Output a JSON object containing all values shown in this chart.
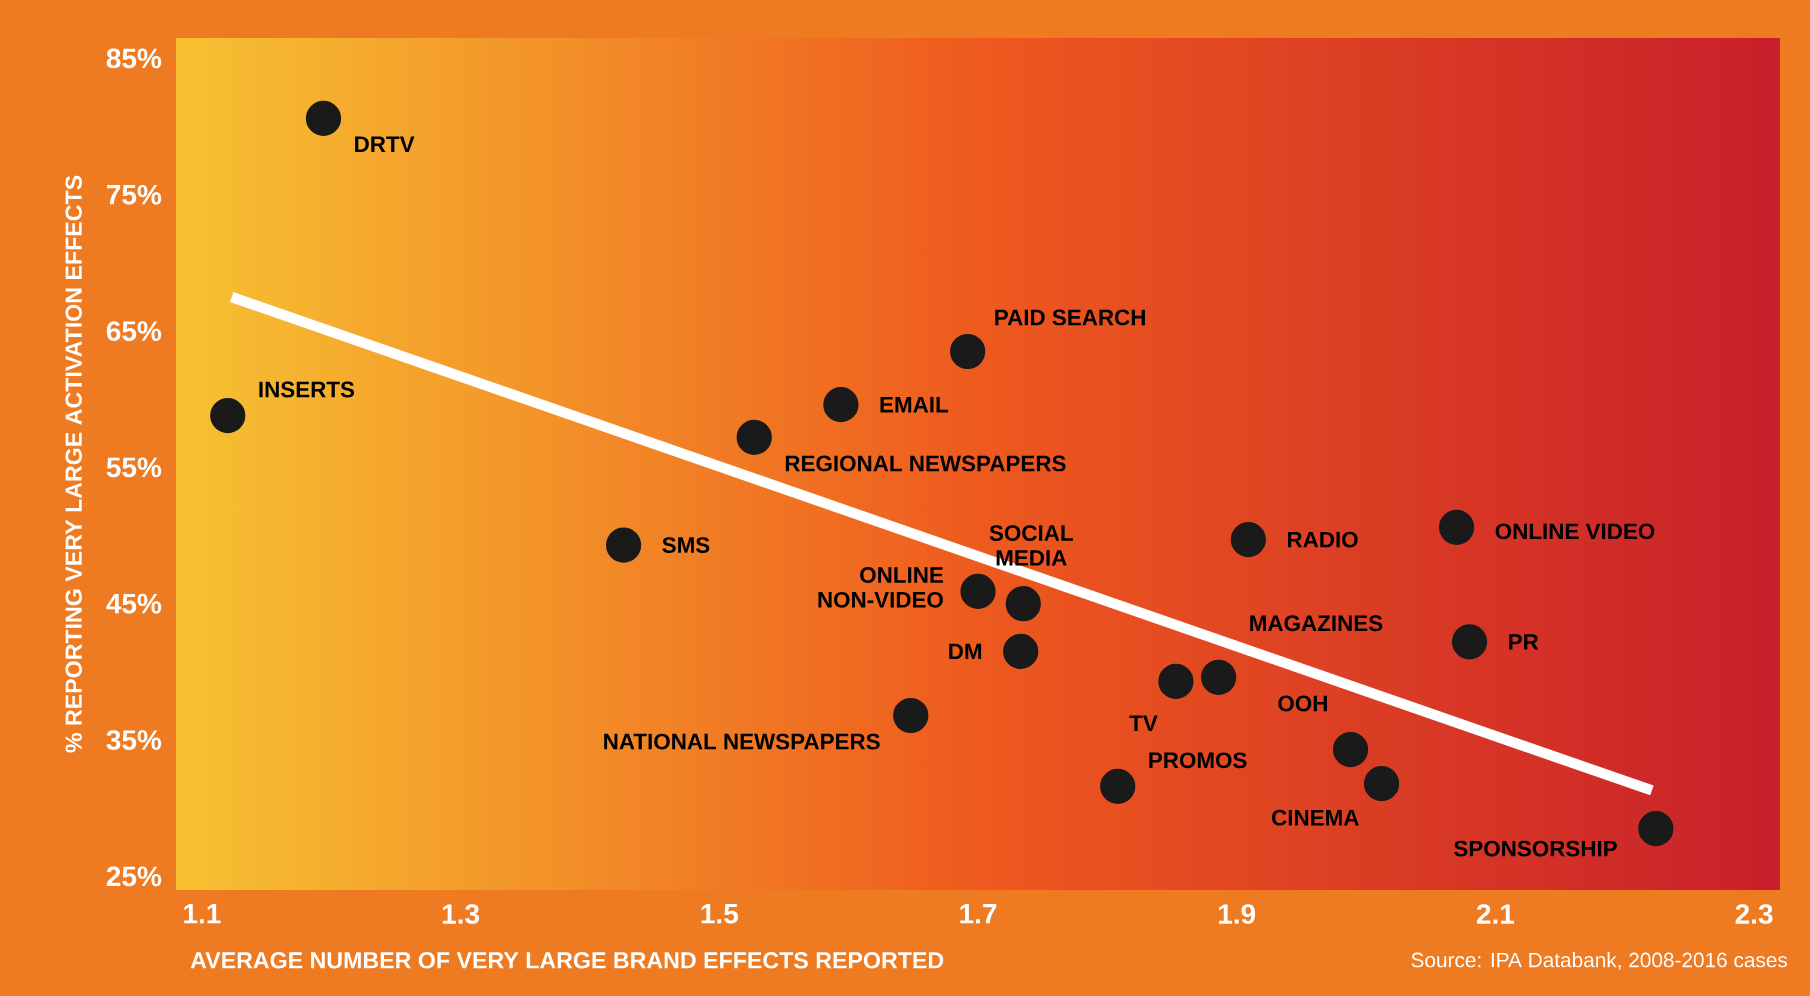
{
  "chart_data": {
    "type": "scatter",
    "xlabel": "AVERAGE NUMBER OF VERY LARGE BRAND EFFECTS REPORTED",
    "ylabel": "% REPORTING VERY LARGE ACTIVATION EFFECTS",
    "xlim": [
      1.08,
      2.32
    ],
    "ylim": [
      24,
      86.5
    ],
    "xticks": [
      1.1,
      1.3,
      1.5,
      1.7,
      1.9,
      2.1,
      2.3
    ],
    "yticks": [
      {
        "value": 25,
        "label": "25%"
      },
      {
        "value": 35,
        "label": "35%"
      },
      {
        "value": 45,
        "label": "45%"
      },
      {
        "value": 55,
        "label": "55%"
      },
      {
        "value": 65,
        "label": "65%"
      },
      {
        "value": 75,
        "label": "75%"
      },
      {
        "value": 85,
        "label": "85%"
      }
    ],
    "series": [
      {
        "marker": "circle",
        "color": "#1a1a1a",
        "x": [
          1.194,
          1.12,
          1.426,
          1.594,
          1.527,
          1.692,
          1.7,
          1.735,
          1.733,
          1.648,
          1.808,
          1.853,
          1.886,
          1.909,
          2.07,
          2.08,
          1.988,
          2.012,
          2.224
        ],
        "values": [
          80.6,
          58.8,
          49.3,
          59.6,
          57.2,
          63.5,
          45.9,
          45.0,
          41.5,
          36.8,
          31.6,
          39.3,
          39.6,
          49.7,
          50.6,
          42.2,
          34.3,
          31.8,
          28.5
        ]
      },
      {
        "type": "line",
        "marker": "none",
        "color": "#ffffff",
        "x": [
          1.123,
          2.221
        ],
        "values": [
          67.5,
          31.3
        ]
      }
    ],
    "annotations": [
      {
        "text": "DRTV",
        "x": 1.194,
        "y": 80.6
      },
      {
        "text": "INSERTS",
        "x": 1.12,
        "y": 58.8
      },
      {
        "text": "SMS",
        "x": 1.426,
        "y": 49.3
      },
      {
        "text": "EMAIL",
        "x": 1.594,
        "y": 59.6
      },
      {
        "text": "REGIONAL NEWSPAPERS",
        "x": 1.527,
        "y": 57.2
      },
      {
        "text": "PAID SEARCH",
        "x": 1.692,
        "y": 63.5
      },
      {
        "text": "ONLINE NON-VIDEO",
        "x": 1.7,
        "y": 45.9
      },
      {
        "text": "SOCIAL MEDIA",
        "x": 1.735,
        "y": 45.0
      },
      {
        "text": "DM",
        "x": 1.733,
        "y": 41.5
      },
      {
        "text": "NATIONAL NEWSPAPERS",
        "x": 1.648,
        "y": 36.8
      },
      {
        "text": "PROMOS",
        "x": 1.808,
        "y": 31.6
      },
      {
        "text": "TV",
        "x": 1.853,
        "y": 39.3
      },
      {
        "text": "MAGAZINES",
        "x": 1.886,
        "y": 39.6
      },
      {
        "text": "RADIO",
        "x": 1.909,
        "y": 49.7
      },
      {
        "text": "ONLINE VIDEO",
        "x": 2.07,
        "y": 50.6
      },
      {
        "text": "PR",
        "x": 2.08,
        "y": 42.2
      },
      {
        "text": "OOH",
        "x": 1.988,
        "y": 34.3
      },
      {
        "text": "CINEMA",
        "x": 2.012,
        "y": 31.8
      },
      {
        "text": "SPONSORSHIP",
        "x": 2.224,
        "y": 28.5
      },
      "Source: IPA Databank, 2008-2016 cases"
    ]
  }
}
